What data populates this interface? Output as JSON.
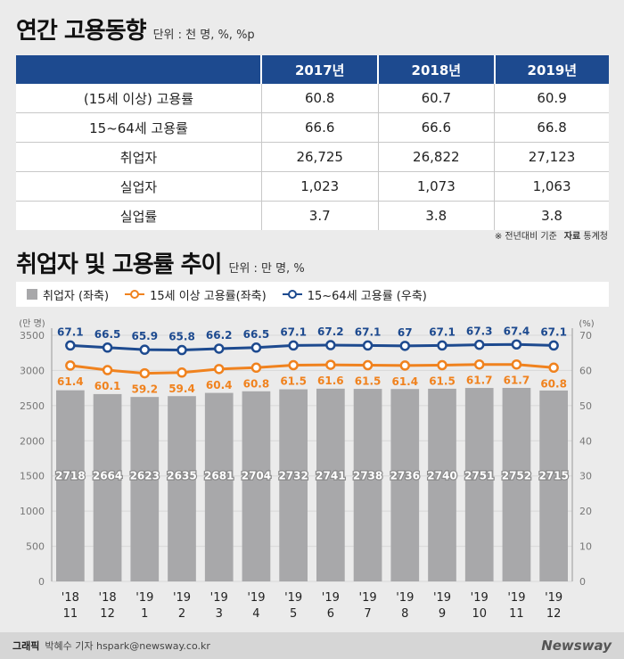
{
  "header1": {
    "title": "연간 고용동향",
    "unit": "단위 : 천 명, %, %p"
  },
  "annual_table": {
    "columns": [
      "",
      "2017년",
      "2018년",
      "2019년"
    ],
    "rows": [
      [
        "(15세 이상) 고용률",
        "60.8",
        "60.7",
        "60.9"
      ],
      [
        "15~64세 고용률",
        "66.6",
        "66.6",
        "66.8"
      ],
      [
        "취업자",
        "26,725",
        "26,822",
        "27,123"
      ],
      [
        "실업자",
        "1,023",
        "1,073",
        "1,063"
      ],
      [
        "실업률",
        "3.7",
        "3.8",
        "3.8"
      ]
    ]
  },
  "note": {
    "text": "※ 전년대비 기준",
    "source_label": "자료",
    "source": "통계청"
  },
  "header2": {
    "title": "취업자 및 고용률 추이",
    "unit": "단위 : 만 명, %"
  },
  "legend": {
    "bar": "취업자 (좌축)",
    "orange": "15세 이상 고용률(좌축)",
    "blue": "15~64세 고용률 (우축)"
  },
  "colors": {
    "bar": "#a8a8aa",
    "orange": "#f0821e",
    "blue": "#1d4a8f",
    "header": "#1d4a8f"
  },
  "chart_data": {
    "type": "bar",
    "categories": [
      "'18 11",
      "'18 12",
      "'19 1",
      "'19 2",
      "'19 3",
      "'19 4",
      "'19 5",
      "'19 6",
      "'19 7",
      "'19 8",
      "'19 9",
      "'19 10",
      "'19 11",
      "'19 12"
    ],
    "left_axis_label": "(만 명)",
    "right_axis_label": "(%)",
    "ylim_left": [
      0,
      3500
    ],
    "ylim_right": [
      0,
      70
    ],
    "left_ticks": [
      0,
      500,
      1000,
      1500,
      2000,
      2500,
      3000,
      3500
    ],
    "right_ticks": [
      0,
      10,
      20,
      30,
      40,
      50,
      60,
      70
    ],
    "series": [
      {
        "name": "취업자 (좌축)",
        "type": "bar",
        "axis": "left",
        "values": [
          2718,
          2664,
          2623,
          2635,
          2681,
          2704,
          2732,
          2741,
          2738,
          2736,
          2740,
          2751,
          2752,
          2715
        ]
      },
      {
        "name": "15세 이상 고용률(좌축)",
        "type": "line",
        "axis": "right",
        "values": [
          61.4,
          60.1,
          59.2,
          59.4,
          60.4,
          60.8,
          61.5,
          61.6,
          61.5,
          61.4,
          61.5,
          61.7,
          61.7,
          60.8
        ]
      },
      {
        "name": "15~64세 고용률 (우축)",
        "type": "line",
        "axis": "right",
        "values": [
          67.1,
          66.5,
          65.9,
          65.8,
          66.2,
          66.5,
          67.1,
          67.2,
          67.1,
          67,
          67.1,
          67.3,
          67.4,
          67.1
        ]
      }
    ]
  },
  "footer": {
    "label": "그래픽",
    "credit": "박혜수 기자 hspark@newsway.co.kr",
    "brand": "Newsway"
  }
}
